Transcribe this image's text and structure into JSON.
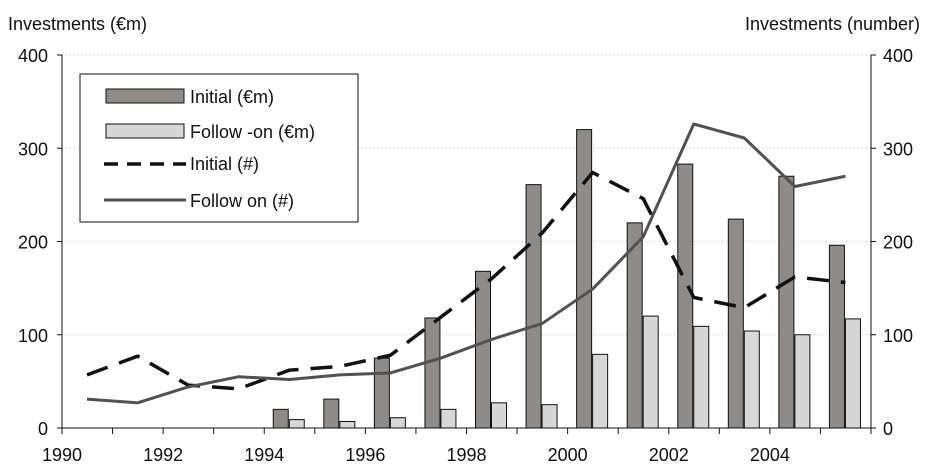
{
  "chart_data": {
    "type": "bar",
    "x": [
      1990,
      1991,
      1992,
      1993,
      1994,
      1995,
      1996,
      1997,
      1998,
      1999,
      2000,
      2001,
      2002,
      2003,
      2004,
      2005
    ],
    "x_tick_labels": [
      "1990",
      "1992",
      "1994",
      "1996",
      "1998",
      "2000",
      "2002",
      "2004"
    ],
    "x_ticks": [
      1990,
      1992,
      1994,
      1996,
      1998,
      2000,
      2002,
      2004
    ],
    "ylabel_left": "Investments (€m)",
    "ylabel_right": "Investments (number)",
    "ylim_left": [
      0,
      400
    ],
    "ylim_right": [
      0,
      400
    ],
    "y_ticks": [
      0,
      100,
      200,
      300,
      400
    ],
    "y_tick_labels": [
      "0",
      "100",
      "200",
      "300",
      "400"
    ],
    "grid": true,
    "legend_position": "top-left",
    "series": [
      {
        "name": "Initial (€m)",
        "kind": "bar",
        "axis": "left",
        "color": "#8f8b88",
        "values": [
          null,
          null,
          null,
          null,
          20,
          31,
          75,
          118,
          168,
          261,
          320,
          220,
          283,
          224,
          270,
          196
        ]
      },
      {
        "name": "Follow -on (€m)",
        "kind": "bar",
        "axis": "left",
        "color": "#d7d7d7",
        "values": [
          null,
          null,
          null,
          null,
          9,
          7,
          11,
          20,
          27,
          25,
          79,
          120,
          109,
          104,
          100,
          117
        ]
      },
      {
        "name": "Initial (#)",
        "kind": "line",
        "style": "dashed",
        "axis": "right",
        "color": "#111111",
        "values": [
          57,
          77,
          46,
          42,
          62,
          66,
          78,
          119,
          160,
          209,
          274,
          246,
          140,
          129,
          162,
          156
        ]
      },
      {
        "name": "Follow on (#)",
        "kind": "line",
        "style": "solid",
        "axis": "right",
        "color": "#555050",
        "values": [
          31,
          27,
          44,
          55,
          52,
          57,
          59,
          75,
          95,
          112,
          149,
          205,
          326,
          311,
          259,
          270
        ]
      }
    ]
  }
}
